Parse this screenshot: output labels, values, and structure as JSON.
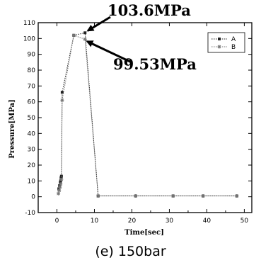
{
  "chart_data": {
    "type": "line",
    "xlabel": "Time[sec]",
    "ylabel": "Pressure[MPa]",
    "xlim": [
      -5,
      52
    ],
    "ylim": [
      -10,
      110
    ],
    "xticks": [
      0,
      10,
      20,
      30,
      40,
      50
    ],
    "yticks": [
      -10,
      0,
      10,
      20,
      30,
      40,
      50,
      60,
      70,
      80,
      90,
      100,
      110
    ],
    "legend": "top-right",
    "series": [
      {
        "name": "A",
        "marker": "square",
        "x": [
          0.5,
          0.7,
          0.9,
          1.0,
          1.1,
          1.2,
          1.4,
          4.5,
          7.5,
          11,
          21,
          31,
          39,
          48
        ],
        "y": [
          5,
          7,
          9,
          10,
          12,
          13,
          66,
          102,
          103.6,
          0.5,
          0.5,
          0.5,
          0.5,
          0.5
        ]
      },
      {
        "name": "B",
        "marker": "star",
        "x": [
          0.4,
          0.6,
          0.8,
          1.0,
          1.2,
          1.4,
          4.5,
          7.5,
          11,
          21,
          31,
          39,
          48
        ],
        "y": [
          2,
          4,
          6,
          8,
          11,
          61,
          102,
          99.53,
          0.5,
          0.5,
          0.5,
          0.5,
          0.5
        ]
      }
    ],
    "annotations": [
      {
        "text": "103.6MPa",
        "x": 7.5,
        "y": 103.6
      },
      {
        "text": "99.53MPa",
        "x": 7.5,
        "y": 99.53
      }
    ]
  },
  "caption": "(e) 150bar"
}
